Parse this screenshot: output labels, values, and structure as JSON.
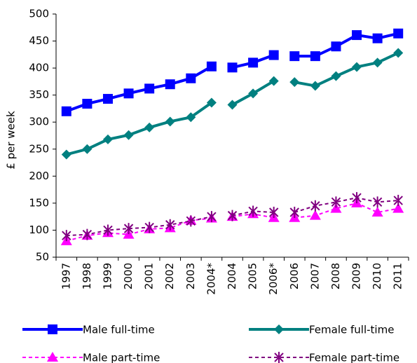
{
  "chart_data": {
    "type": "line",
    "y_label": "£ per week",
    "categories": [
      "1997",
      "1998",
      "1999",
      "2000",
      "2001",
      "2002",
      "2003",
      "2004*",
      "2004",
      "2005",
      "2006*",
      "2006",
      "2007",
      "2008",
      "2009",
      "2010",
      "2011"
    ],
    "segment_breaks": [
      8,
      11
    ],
    "series": [
      {
        "name": "Male full-time",
        "color": "#0000ff",
        "marker": "square",
        "dash": false,
        "values": [
          320,
          334,
          343,
          353,
          362,
          370,
          381,
          403,
          401,
          410,
          424,
          422,
          422,
          440,
          461,
          455,
          464
        ]
      },
      {
        "name": "Female full-time",
        "color": "#008080",
        "marker": "diamond",
        "dash": false,
        "values": [
          240,
          250,
          268,
          276,
          290,
          301,
          309,
          336,
          332,
          353,
          376,
          374,
          367,
          385,
          402,
          410,
          428
        ]
      },
      {
        "name": "Male part-time",
        "color": "#ff00ff",
        "marker": "triangle",
        "dash": true,
        "values": [
          80,
          90,
          95,
          92,
          102,
          104,
          118,
          122,
          125,
          130,
          123,
          123,
          127,
          140,
          150,
          133,
          140
        ]
      },
      {
        "name": "Female part-time",
        "color": "#800080",
        "marker": "star",
        "dash": true,
        "values": [
          90,
          92,
          100,
          103,
          105,
          110,
          117,
          125,
          127,
          135,
          133,
          133,
          145,
          152,
          160,
          152,
          155
        ]
      }
    ],
    "ylim": [
      50,
      500
    ],
    "yticks": [
      50,
      100,
      150,
      200,
      250,
      300,
      350,
      400,
      450,
      500
    ],
    "grid": false,
    "legend": "bottom"
  }
}
